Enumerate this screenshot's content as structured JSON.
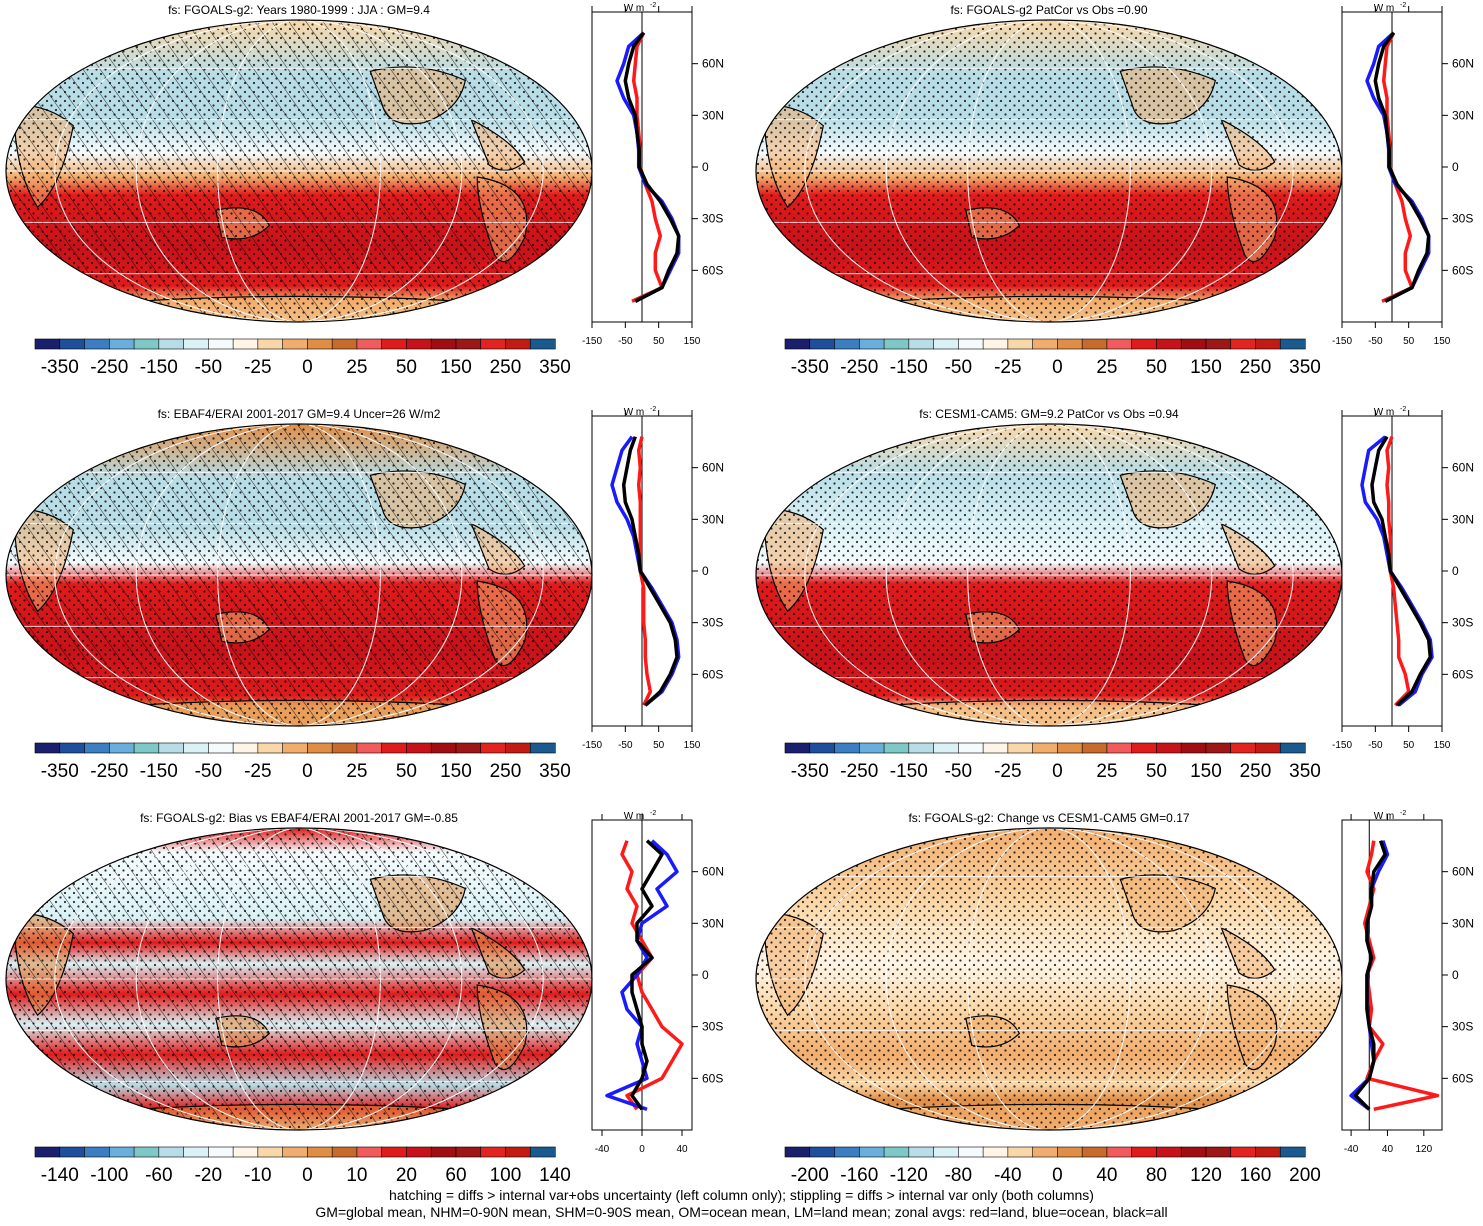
{
  "colormap": [
    "#1a1f6e",
    "#1f4f9c",
    "#3b7ec2",
    "#6aaedc",
    "#7ec8c8",
    "#b9dde6",
    "#daf1f5",
    "#f5fbfd",
    "#fff5e6",
    "#fad7a8",
    "#f1ad6e",
    "#e08e46",
    "#c86a2c",
    "#f25b5b",
    "#e01b1b",
    "#c8121a",
    "#a20d12",
    "#9e1616",
    "#e2231f",
    "#c41a14",
    "#1a5a8f"
  ],
  "panels": [
    {
      "id": "model-climatology",
      "title": "fs: FGOALS-g2: Years 1980-1999 : JJA : GM=9.4",
      "hatching": true,
      "colorbar_labels": [
        "-350",
        "-250",
        "-150",
        "-50",
        "-25",
        "0",
        "25",
        "50",
        "150",
        "250",
        "350"
      ],
      "zonal": {
        "xlim": [
          -150,
          150
        ],
        "xtick_labels": [
          "-150",
          "-50",
          "50",
          "150"
        ],
        "ytick_labels": [
          "60N",
          "30N",
          "0",
          "30S",
          "60S"
        ],
        "units_label": "W m",
        "units_exp": "-2",
        "lat": [
          78,
          70,
          60,
          50,
          40,
          30,
          20,
          10,
          0,
          -10,
          -20,
          -30,
          -40,
          -50,
          -60,
          -70,
          -78
        ],
        "land": [
          5,
          -15,
          -20,
          -25,
          -15,
          -15,
          -10,
          -5,
          -5,
          10,
          30,
          40,
          55,
          40,
          40,
          60,
          -30
        ],
        "ocean": [
          5,
          -40,
          -55,
          -75,
          -55,
          -25,
          -15,
          -10,
          -10,
          10,
          60,
          90,
          110,
          110,
          85,
          60,
          -20
        ],
        "all": [
          5,
          -25,
          -40,
          -50,
          -40,
          -20,
          -15,
          -8,
          -8,
          15,
          55,
          85,
          110,
          105,
          80,
          60,
          -20
        ]
      }
    },
    {
      "id": "model-patcor",
      "title": "fs: FGOALS-g2 PatCor vs Obs =0.90",
      "hatching": false,
      "colorbar_labels": [
        "-350",
        "-250",
        "-150",
        "-50",
        "-25",
        "0",
        "25",
        "50",
        "150",
        "250",
        "350"
      ],
      "zonal": {
        "xlim": [
          -150,
          150
        ],
        "xtick_labels": [
          "-150",
          "-50",
          "50",
          "150"
        ],
        "ytick_labels": [
          "60N",
          "30N",
          "0",
          "30S",
          "60S"
        ],
        "units_label": "W m",
        "units_exp": "-2",
        "lat": [
          78,
          70,
          60,
          50,
          40,
          30,
          20,
          10,
          0,
          -10,
          -20,
          -30,
          -40,
          -50,
          -60,
          -70,
          -78
        ],
        "land": [
          5,
          -15,
          -20,
          -25,
          -15,
          -15,
          -10,
          -5,
          -5,
          10,
          30,
          40,
          55,
          40,
          40,
          60,
          -30
        ],
        "ocean": [
          5,
          -40,
          -55,
          -75,
          -55,
          -25,
          -15,
          -10,
          -10,
          10,
          60,
          90,
          110,
          110,
          85,
          60,
          -20
        ],
        "all": [
          5,
          -25,
          -40,
          -50,
          -40,
          -20,
          -15,
          -8,
          -8,
          15,
          55,
          85,
          110,
          105,
          80,
          60,
          -20
        ]
      }
    },
    {
      "id": "obs-climatology",
      "title": "fs: EBAF4/ERAI 2001-2017 GM=9.4 Uncer=26 W/m2",
      "hatching": true,
      "colorbar_labels": [
        "-350",
        "-250",
        "-150",
        "-50",
        "-25",
        "0",
        "25",
        "50",
        "150",
        "250",
        "350"
      ],
      "zonal": {
        "xlim": [
          -150,
          150
        ],
        "xtick_labels": [
          "-150",
          "-50",
          "50",
          "150"
        ],
        "ytick_labels": [
          "60N",
          "30N",
          "0",
          "30S",
          "60S"
        ],
        "units_label": "W m",
        "units_exp": "-2",
        "lat": [
          78,
          70,
          60,
          50,
          40,
          30,
          20,
          10,
          0,
          -10,
          -20,
          -30,
          -40,
          -50,
          -60,
          -70,
          -78
        ],
        "land": [
          0,
          -10,
          -5,
          -10,
          -5,
          -5,
          -5,
          -5,
          -5,
          5,
          5,
          5,
          10,
          10,
          15,
          25,
          5
        ],
        "ocean": [
          -30,
          -60,
          -75,
          -90,
          -75,
          -45,
          -25,
          -15,
          -5,
          30,
          60,
          90,
          105,
          110,
          90,
          60,
          10
        ],
        "all": [
          -20,
          -35,
          -45,
          -55,
          -50,
          -30,
          -20,
          -10,
          -5,
          25,
          55,
          85,
          100,
          105,
          85,
          55,
          10
        ]
      }
    },
    {
      "id": "cesm-climatology",
      "title": "fs: CESM1-CAM5: GM=9.2 PatCor vs Obs =0.94",
      "hatching": false,
      "colorbar_labels": [
        "-350",
        "-250",
        "-150",
        "-50",
        "-25",
        "0",
        "25",
        "50",
        "150",
        "250",
        "350"
      ],
      "zonal": {
        "xlim": [
          -150,
          150
        ],
        "xtick_labels": [
          "-150",
          "-50",
          "50",
          "150"
        ],
        "ytick_labels": [
          "60N",
          "30N",
          "0",
          "30S",
          "60S"
        ],
        "units_label": "W m",
        "units_exp": "-2",
        "lat": [
          78,
          70,
          60,
          50,
          40,
          30,
          20,
          10,
          0,
          -10,
          -20,
          -30,
          -40,
          -50,
          -60,
          -70,
          -78
        ],
        "land": [
          0,
          -15,
          -10,
          -15,
          -10,
          -10,
          -5,
          -5,
          -5,
          5,
          10,
          15,
          20,
          20,
          40,
          50,
          10
        ],
        "ocean": [
          -20,
          -70,
          -80,
          -90,
          -80,
          -45,
          -25,
          -15,
          -5,
          30,
          60,
          90,
          115,
          120,
          90,
          70,
          20
        ],
        "all": [
          -15,
          -40,
          -50,
          -60,
          -55,
          -30,
          -20,
          -10,
          -5,
          25,
          55,
          85,
          110,
          115,
          85,
          60,
          15
        ]
      }
    },
    {
      "id": "model-bias",
      "title": "fs: FGOALS-g2: Bias vs EBAF4/ERAI 2001-2017 GM=-0.85",
      "hatching": true,
      "colorbar_labels": [
        "-140",
        "-100",
        "-60",
        "-20",
        "-10",
        "0",
        "10",
        "20",
        "60",
        "100",
        "140"
      ],
      "zonal": {
        "xlim": [
          -50,
          50
        ],
        "xtick_labels": [
          "-40",
          "0",
          "40"
        ],
        "ytick_labels": [
          "60N",
          "30N",
          "0",
          "30S",
          "60S"
        ],
        "units_label": "W m",
        "units_exp": "-2",
        "lat": [
          78,
          70,
          60,
          50,
          40,
          30,
          20,
          10,
          0,
          -10,
          -20,
          -30,
          -40,
          -50,
          -60,
          -70,
          -78
        ],
        "land": [
          -15,
          -20,
          -10,
          -15,
          -5,
          -10,
          0,
          10,
          -5,
          0,
          10,
          20,
          40,
          30,
          20,
          -15,
          -5
        ],
        "ocean": [
          10,
          25,
          35,
          15,
          25,
          0,
          -5,
          5,
          -5,
          -20,
          -15,
          0,
          -5,
          0,
          5,
          -35,
          5
        ],
        "all": [
          5,
          20,
          10,
          0,
          10,
          -5,
          -5,
          10,
          -10,
          -10,
          -5,
          0,
          0,
          5,
          0,
          -10,
          0
        ]
      }
    },
    {
      "id": "model-change",
      "title": "fs: FGOALS-g2: Change vs CESM1-CAM5 GM=0.17",
      "hatching": false,
      "colorbar_labels": [
        "-200",
        "-160",
        "-120",
        "-80",
        "-40",
        "0",
        "40",
        "80",
        "120",
        "160",
        "200"
      ],
      "zonal": {
        "xlim": [
          -60,
          160
        ],
        "xtick_labels": [
          "-40",
          "40",
          "120"
        ],
        "ytick_labels": [
          "60N",
          "30N",
          "0",
          "30S",
          "60S"
        ],
        "units_label": "W m",
        "units_exp": "-2",
        "lat": [
          78,
          70,
          60,
          50,
          40,
          30,
          20,
          10,
          0,
          -10,
          -20,
          -30,
          -40,
          -50,
          -60,
          -70,
          -78
        ],
        "land": [
          10,
          5,
          -5,
          10,
          0,
          -10,
          0,
          10,
          -5,
          0,
          5,
          0,
          30,
          10,
          -5,
          150,
          10
        ],
        "ocean": [
          30,
          40,
          20,
          5,
          5,
          -5,
          -5,
          5,
          -5,
          -5,
          -5,
          0,
          5,
          10,
          0,
          -40,
          0
        ],
        "all": [
          25,
          35,
          10,
          5,
          5,
          -5,
          -5,
          5,
          -5,
          -5,
          -5,
          0,
          10,
          10,
          0,
          -30,
          0
        ]
      }
    }
  ],
  "footer": {
    "line1": "hatching = diffs > internal var+obs uncertainty (left column only); stippling = diffs > internal var only (both columns)",
    "line2": "GM=global mean, NHM=0-90N mean, SHM=0-90S mean, OM=ocean mean, LM=land mean; zonal avgs: red=land, blue=ocean, black=all"
  }
}
